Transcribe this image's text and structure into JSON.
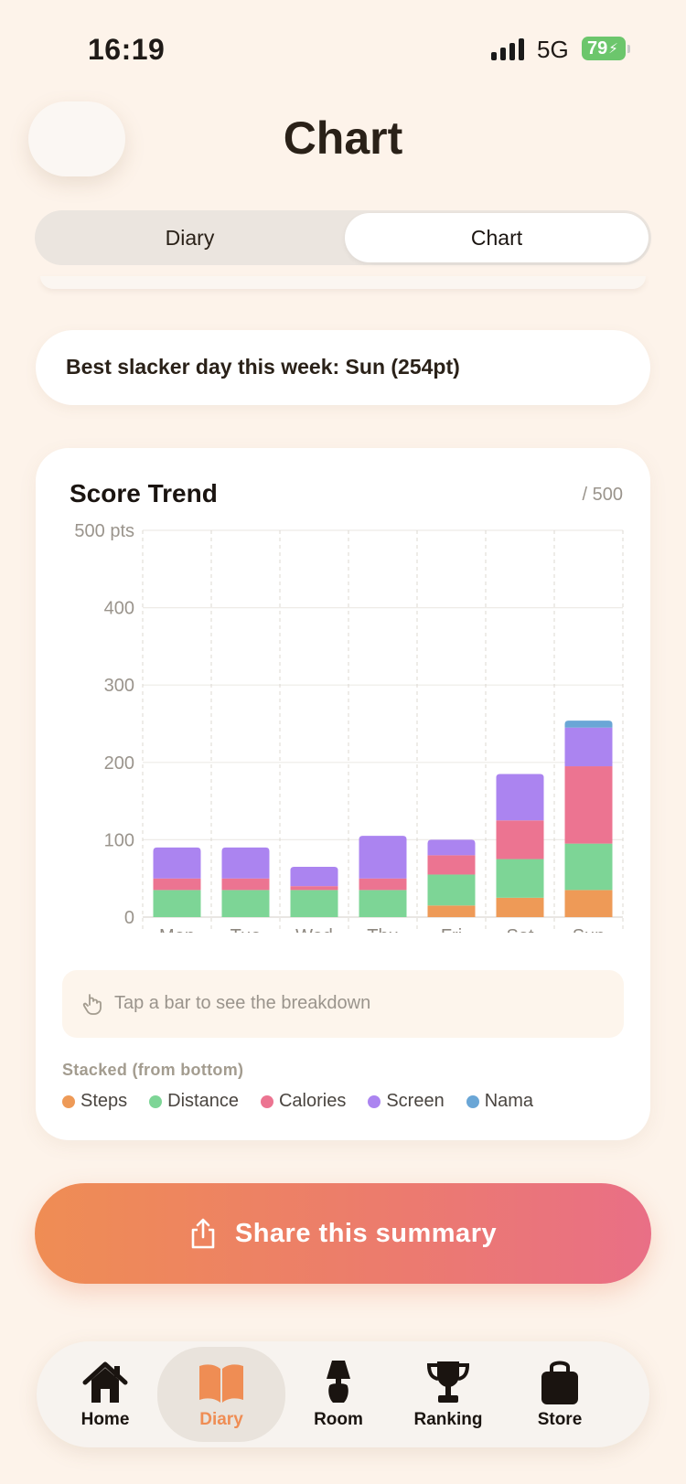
{
  "status_bar": {
    "time": "16:19",
    "network": "5G",
    "battery": "79"
  },
  "header": {
    "title": "Chart"
  },
  "segmented": {
    "diary_label": "Diary",
    "chart_label": "Chart",
    "selected": "Chart"
  },
  "best_day": {
    "text": "Best slacker day this week: Sun (254pt)"
  },
  "score_trend": {
    "title": "Score Trend",
    "max_label": "/ 500",
    "hint": "Tap a bar to see the breakdown",
    "legend_title": "Stacked (from bottom)"
  },
  "chart_data": {
    "type": "bar",
    "stacked": true,
    "categories": [
      "Mon",
      "Tue",
      "Wed",
      "Thu",
      "Fri",
      "Sat",
      "Sun"
    ],
    "ylim": [
      0,
      500
    ],
    "y_ticks": [
      0,
      100,
      200,
      300,
      400,
      500
    ],
    "y_tick_labels": [
      "0",
      "100",
      "200",
      "300",
      "400",
      "500 pts"
    ],
    "grid": true,
    "series": [
      {
        "name": "Steps",
        "color": "#ee9a57",
        "values": [
          0,
          0,
          0,
          0,
          15,
          25,
          35
        ]
      },
      {
        "name": "Distance",
        "color": "#7dd596",
        "values": [
          35,
          35,
          35,
          35,
          40,
          50,
          60
        ]
      },
      {
        "name": "Calories",
        "color": "#ec7491",
        "values": [
          15,
          15,
          5,
          15,
          25,
          50,
          100
        ]
      },
      {
        "name": "Screen",
        "color": "#ab84f0",
        "values": [
          40,
          40,
          25,
          55,
          20,
          60,
          50
        ]
      },
      {
        "name": "Nama",
        "color": "#6aa6d6",
        "values": [
          0,
          0,
          0,
          0,
          0,
          0,
          9
        ]
      }
    ]
  },
  "share": {
    "label": "Share this summary"
  },
  "tabs": [
    {
      "label": "Home",
      "icon": "home-icon"
    },
    {
      "label": "Diary",
      "icon": "book-icon"
    },
    {
      "label": "Room",
      "icon": "lamp-icon"
    },
    {
      "label": "Ranking",
      "icon": "trophy-icon"
    },
    {
      "label": "Store",
      "icon": "bag-icon"
    }
  ],
  "colors": {
    "accent": "#ef8d54",
    "background": "#fdf3ea"
  }
}
